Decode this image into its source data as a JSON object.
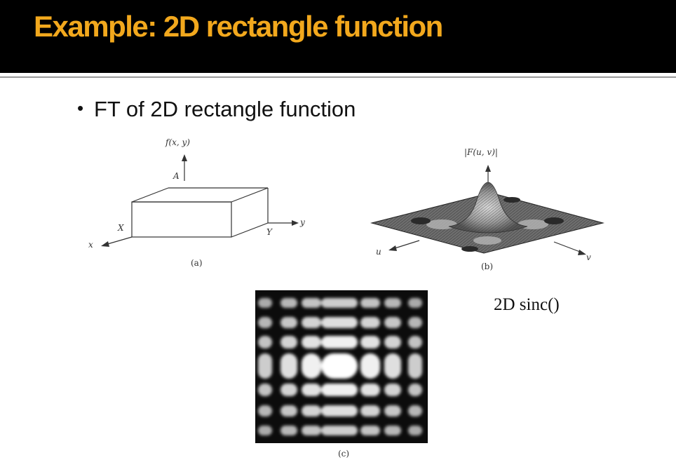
{
  "slide": {
    "title": "Example: 2D rectangle function",
    "bullet": "FT of 2D rectangle function",
    "caption": "2D sinc()",
    "colors": {
      "title_bar": "#000000",
      "title_text": "#f2a81d"
    }
  },
  "figure_a": {
    "panel_label": "(a)",
    "axis_func": "f(x, y)",
    "height_label": "A",
    "side_x": "X",
    "side_y": "Y",
    "axis_x": "x",
    "axis_y": "y"
  },
  "figure_b": {
    "panel_label": "(b)",
    "axis_func": "|F(u, v)|",
    "axis_u": "u",
    "axis_v": "v"
  },
  "figure_c": {
    "panel_label": "(c)"
  }
}
